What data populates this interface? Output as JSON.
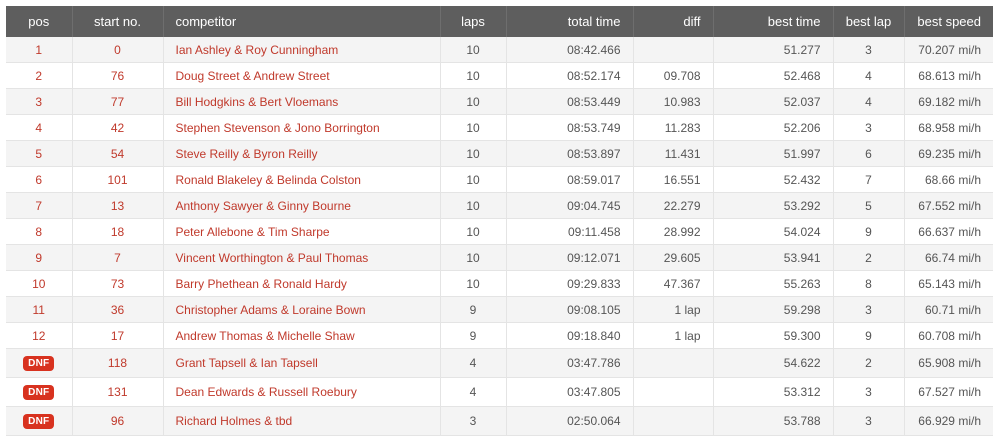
{
  "columns": {
    "pos": "pos",
    "start_no": "start no.",
    "competitor": "competitor",
    "laps": "laps",
    "total_time": "total time",
    "diff": "diff",
    "best_time": "best time",
    "best_lap": "best lap",
    "best_speed": "best speed"
  },
  "rows": [
    {
      "pos": "1",
      "start_no": "0",
      "competitor": "Ian Ashley & Roy Cunningham",
      "laps": "10",
      "total_time": "08:42.466",
      "diff": "",
      "best_time": "51.277",
      "best_lap": "3",
      "best_speed": "70.207 mi/h"
    },
    {
      "pos": "2",
      "start_no": "76",
      "competitor": "Doug Street & Andrew Street",
      "laps": "10",
      "total_time": "08:52.174",
      "diff": "09.708",
      "best_time": "52.468",
      "best_lap": "4",
      "best_speed": "68.613 mi/h"
    },
    {
      "pos": "3",
      "start_no": "77",
      "competitor": "Bill Hodgkins & Bert Vloemans",
      "laps": "10",
      "total_time": "08:53.449",
      "diff": "10.983",
      "best_time": "52.037",
      "best_lap": "4",
      "best_speed": "69.182 mi/h"
    },
    {
      "pos": "4",
      "start_no": "42",
      "competitor": "Stephen Stevenson & Jono Borrington",
      "laps": "10",
      "total_time": "08:53.749",
      "diff": "11.283",
      "best_time": "52.206",
      "best_lap": "3",
      "best_speed": "68.958 mi/h"
    },
    {
      "pos": "5",
      "start_no": "54",
      "competitor": "Steve Reilly & Byron Reilly",
      "laps": "10",
      "total_time": "08:53.897",
      "diff": "11.431",
      "best_time": "51.997",
      "best_lap": "6",
      "best_speed": "69.235 mi/h"
    },
    {
      "pos": "6",
      "start_no": "101",
      "competitor": "Ronald Blakeley & Belinda Colston",
      "laps": "10",
      "total_time": "08:59.017",
      "diff": "16.551",
      "best_time": "52.432",
      "best_lap": "7",
      "best_speed": "68.66 mi/h"
    },
    {
      "pos": "7",
      "start_no": "13",
      "competitor": "Anthony Sawyer & Ginny Bourne",
      "laps": "10",
      "total_time": "09:04.745",
      "diff": "22.279",
      "best_time": "53.292",
      "best_lap": "5",
      "best_speed": "67.552 mi/h"
    },
    {
      "pos": "8",
      "start_no": "18",
      "competitor": "Peter Allebone & Tim Sharpe",
      "laps": "10",
      "total_time": "09:11.458",
      "diff": "28.992",
      "best_time": "54.024",
      "best_lap": "9",
      "best_speed": "66.637 mi/h"
    },
    {
      "pos": "9",
      "start_no": "7",
      "competitor": "Vincent Worthington & Paul Thomas",
      "laps": "10",
      "total_time": "09:12.071",
      "diff": "29.605",
      "best_time": "53.941",
      "best_lap": "2",
      "best_speed": "66.74 mi/h"
    },
    {
      "pos": "10",
      "start_no": "73",
      "competitor": "Barry Phethean & Ronald Hardy",
      "laps": "10",
      "total_time": "09:29.833",
      "diff": "47.367",
      "best_time": "55.263",
      "best_lap": "8",
      "best_speed": "65.143 mi/h"
    },
    {
      "pos": "11",
      "start_no": "36",
      "competitor": "Christopher Adams & Loraine Bown",
      "laps": "9",
      "total_time": "09:08.105",
      "diff": "1 lap",
      "best_time": "59.298",
      "best_lap": "3",
      "best_speed": "60.71 mi/h"
    },
    {
      "pos": "12",
      "start_no": "17",
      "competitor": "Andrew Thomas & Michelle Shaw",
      "laps": "9",
      "total_time": "09:18.840",
      "diff": "1 lap",
      "best_time": "59.300",
      "best_lap": "9",
      "best_speed": "60.708 mi/h"
    },
    {
      "pos": "DNF",
      "start_no": "118",
      "competitor": "Grant Tapsell & Ian Tapsell",
      "laps": "4",
      "total_time": "03:47.786",
      "diff": "",
      "best_time": "54.622",
      "best_lap": "2",
      "best_speed": "65.908 mi/h"
    },
    {
      "pos": "DNF",
      "start_no": "131",
      "competitor": "Dean Edwards & Russell Roebury",
      "laps": "4",
      "total_time": "03:47.805",
      "diff": "",
      "best_time": "53.312",
      "best_lap": "3",
      "best_speed": "67.527 mi/h"
    },
    {
      "pos": "DNF",
      "start_no": "96",
      "competitor": "Richard Holmes & tbd",
      "laps": "3",
      "total_time": "02:50.064",
      "diff": "",
      "best_time": "53.788",
      "best_lap": "3",
      "best_speed": "66.929 mi/h"
    }
  ]
}
